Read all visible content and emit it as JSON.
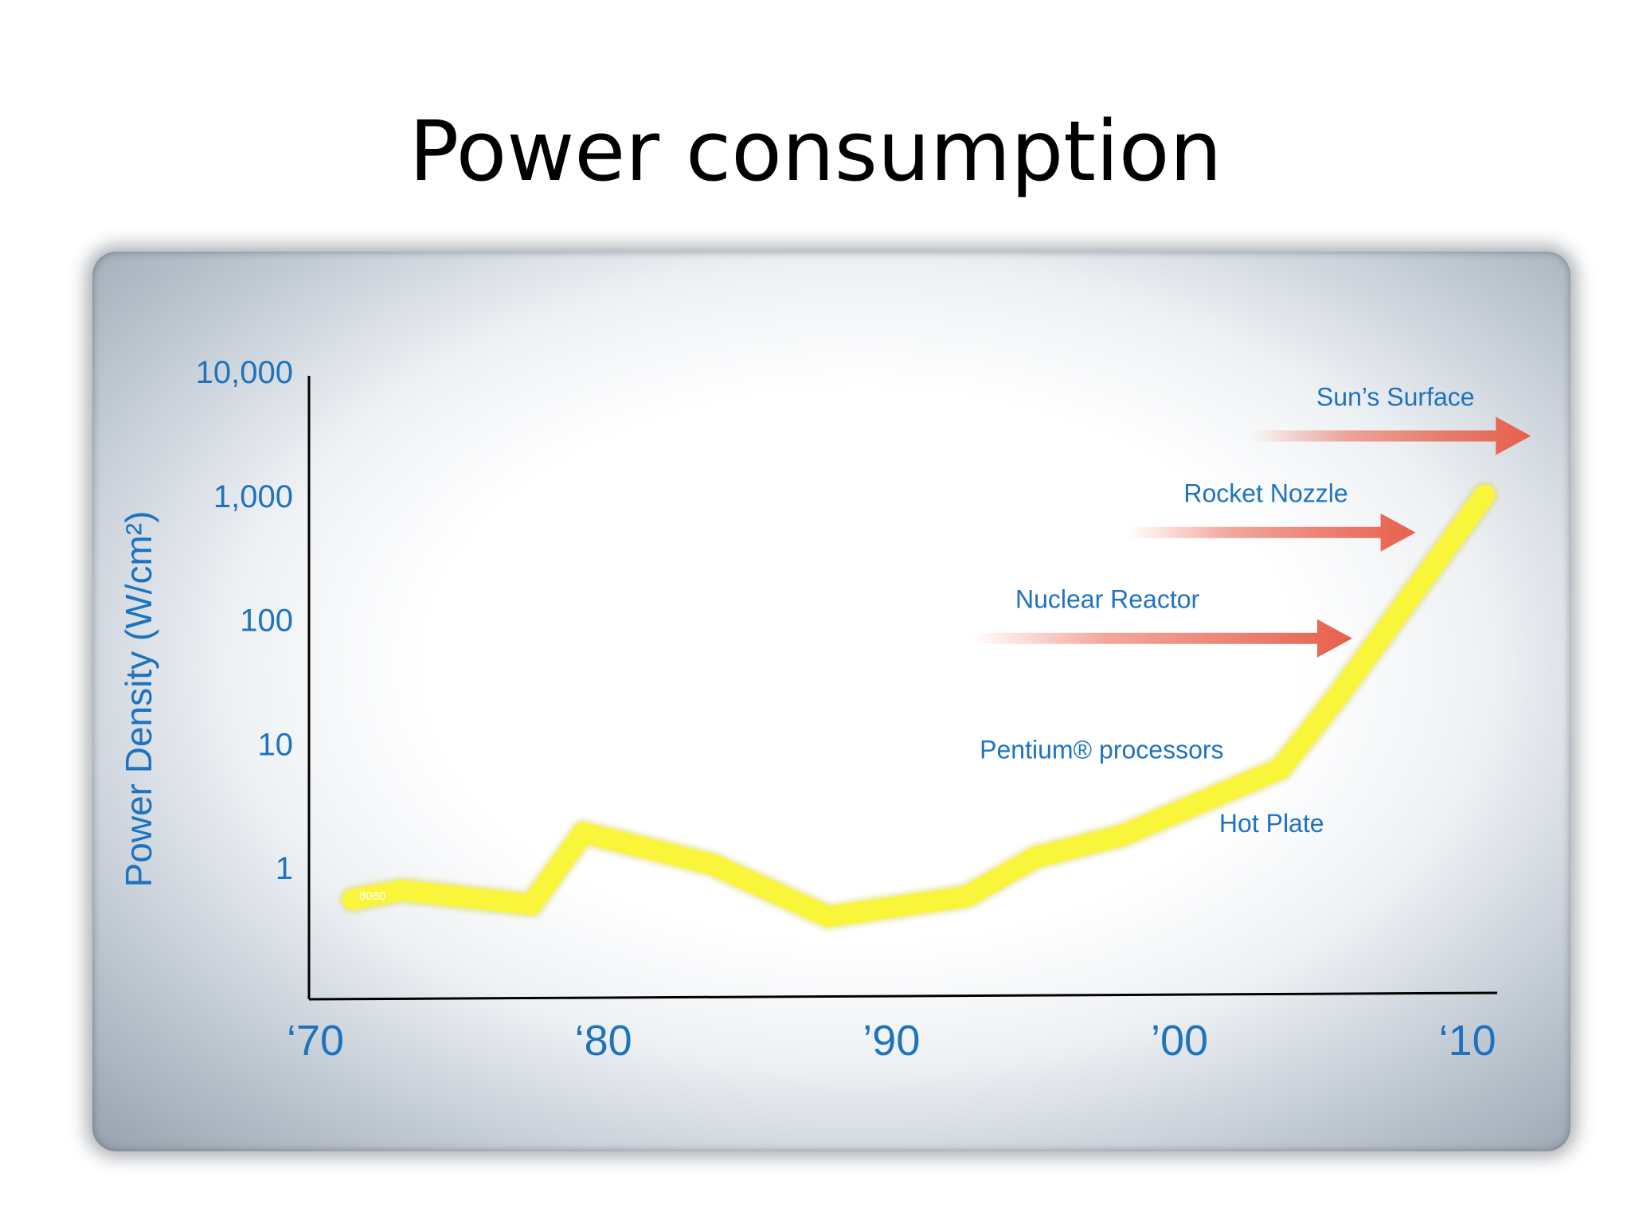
{
  "slide": {
    "title": "Power consumption"
  },
  "chart_data": {
    "type": "line",
    "title": "Power consumption",
    "xlabel": "",
    "ylabel": "Power Density (W/cm²)",
    "y_scale": "log",
    "ylim": [
      0.1,
      10000
    ],
    "xlim": [
      1970,
      2012
    ],
    "x_ticks": [
      {
        "value": 1970,
        "label": "‘70"
      },
      {
        "value": 1980,
        "label": "‘80"
      },
      {
        "value": 1990,
        "label": "’90"
      },
      {
        "value": 2000,
        "label": "’00"
      },
      {
        "value": 2010,
        "label": "‘10"
      }
    ],
    "y_ticks": [
      {
        "value": 1,
        "label": "1"
      },
      {
        "value": 10,
        "label": "10"
      },
      {
        "value": 100,
        "label": "100"
      },
      {
        "value": 1000,
        "label": "1,000"
      },
      {
        "value": 10000,
        "label": "10,000"
      }
    ],
    "grid": false,
    "series": [
      {
        "color": "#f8f53a",
        "points": [
          {
            "x": 1971.3,
            "y": 0.55
          },
          {
            "x": 1973.0,
            "y": 0.65
          },
          {
            "x": 1977.5,
            "y": 0.5
          },
          {
            "x": 1979.3,
            "y": 1.9
          },
          {
            "x": 1983.8,
            "y": 1.05
          },
          {
            "x": 1987.8,
            "y": 0.4
          },
          {
            "x": 1992.6,
            "y": 0.58
          },
          {
            "x": 1995.0,
            "y": 1.2
          },
          {
            "x": 1998.0,
            "y": 1.8
          },
          {
            "x": 2003.5,
            "y": 6.2
          },
          {
            "x": 2005.5,
            "y": 24
          },
          {
            "x": 2010.6,
            "y": 1000
          }
        ]
      }
    ],
    "point_labels": [
      {
        "x": 1971.3,
        "y": 0.6,
        "text": "8080",
        "color": "#ffffff"
      }
    ],
    "annotations": [
      {
        "label": "Sun’s Surface",
        "y": 3000,
        "arrow_start_x": 2002.5,
        "arrow_end_x": 2012.2,
        "label_x": 2007.5
      },
      {
        "label": "Rocket Nozzle",
        "y": 500,
        "arrow_start_x": 1998.2,
        "arrow_end_x": 2008.2,
        "label_x": 2003.0
      },
      {
        "label": "Nuclear Reactor",
        "y": 70,
        "arrow_start_x": 1992.8,
        "arrow_end_x": 2006.0,
        "label_x": 1997.5
      },
      {
        "label": "Pentium® processors",
        "y": 9,
        "label_x": 1997.3
      },
      {
        "label": "Hot Plate",
        "y": 2.3,
        "label_x": 2003.2
      }
    ],
    "colors": {
      "axis_text": "#1e73be",
      "arrow": "#e8604c",
      "axis_line": "#000000"
    }
  }
}
